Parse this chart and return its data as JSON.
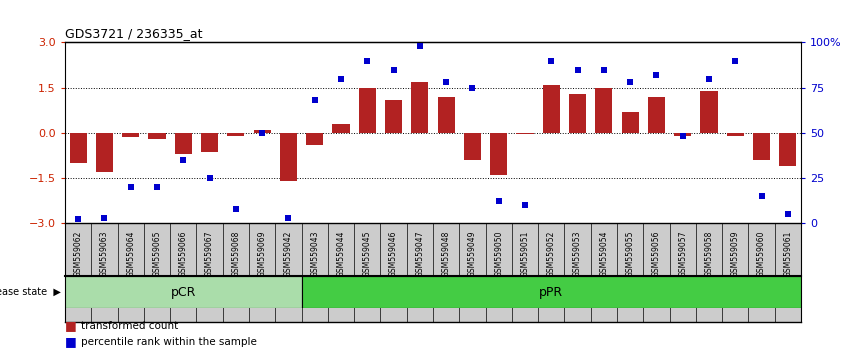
{
  "title": "GDS3721 / 236335_at",
  "samples": [
    "GSM559062",
    "GSM559063",
    "GSM559064",
    "GSM559065",
    "GSM559066",
    "GSM559067",
    "GSM559068",
    "GSM559069",
    "GSM559042",
    "GSM559043",
    "GSM559044",
    "GSM559045",
    "GSM559046",
    "GSM559047",
    "GSM559048",
    "GSM559049",
    "GSM559050",
    "GSM559051",
    "GSM559052",
    "GSM559053",
    "GSM559054",
    "GSM559055",
    "GSM559056",
    "GSM559057",
    "GSM559058",
    "GSM559059",
    "GSM559060",
    "GSM559061"
  ],
  "bar_values": [
    -1.0,
    -1.3,
    -0.15,
    -0.2,
    -0.7,
    -0.65,
    -0.1,
    0.1,
    -1.6,
    -0.4,
    0.3,
    1.5,
    1.1,
    1.7,
    1.2,
    -0.9,
    -1.4,
    -0.05,
    1.6,
    1.3,
    1.5,
    0.7,
    1.2,
    -0.1,
    1.4,
    -0.1,
    -0.9,
    -1.1
  ],
  "percentile_values": [
    2,
    3,
    20,
    20,
    35,
    25,
    8,
    50,
    3,
    68,
    80,
    90,
    85,
    98,
    78,
    75,
    12,
    10,
    90,
    85,
    85,
    78,
    82,
    48,
    80,
    90,
    15,
    5
  ],
  "bar_color": "#B22222",
  "dot_color": "#0000CD",
  "disease_states": [
    {
      "label": "pCR",
      "start": 0,
      "end": 9,
      "color": "#AADDAA"
    },
    {
      "label": "pPR",
      "start": 9,
      "end": 28,
      "color": "#44CC44"
    }
  ],
  "ylim": [
    -3,
    3
  ],
  "yticks_left": [
    -3,
    -1.5,
    0,
    1.5,
    3
  ],
  "yticks_right": [
    0,
    25,
    50,
    75,
    100
  ],
  "hline_positions": [
    -1.5,
    0,
    1.5
  ],
  "background_color": "#ffffff",
  "left_ylabel_color": "#CC2200",
  "right_ylabel_color": "#0000CD",
  "label_bg_color": "#CCCCCC"
}
